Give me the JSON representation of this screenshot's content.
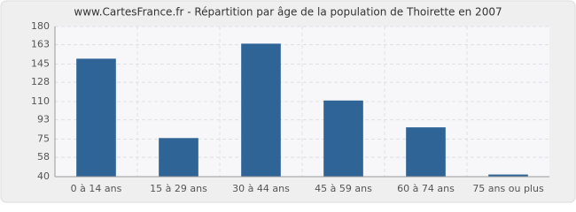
{
  "chart_data": {
    "type": "bar",
    "title": "www.CartesFrance.fr - Répartition par âge de la population de Thoirette en 2007",
    "categories": [
      "0 à 14 ans",
      "15 à 29 ans",
      "30 à 44 ans",
      "45 à 59 ans",
      "60 à 74 ans",
      "75 ans ou plus"
    ],
    "values": [
      150,
      76,
      164,
      111,
      86,
      42
    ],
    "color": "#2f6496",
    "ylim": [
      40,
      180
    ],
    "yticks": [
      40,
      58,
      75,
      93,
      110,
      128,
      145,
      163,
      180
    ],
    "grid": true
  }
}
